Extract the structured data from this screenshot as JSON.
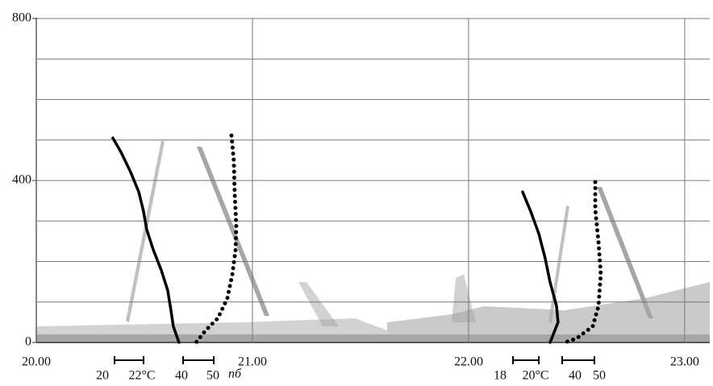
{
  "chart_data": {
    "type": "line",
    "xlim": [
      20,
      23.116
    ],
    "ylim": [
      0,
      800
    ],
    "xticks": [
      {
        "value": 20,
        "label": "20.00"
      },
      {
        "value": 21,
        "label": "21.00"
      },
      {
        "value": 22,
        "label": "22.00"
      },
      {
        "value": 23,
        "label": "23.00"
      }
    ],
    "yticks": [
      0,
      400,
      800
    ],
    "ygrid": [
      100,
      200,
      300,
      400,
      500,
      600,
      700,
      800
    ],
    "grid": true,
    "series": [
      {
        "color": "#000000",
        "style": "solid",
        "x": [
          20.354,
          20.392,
          20.437,
          20.474,
          20.496,
          20.511,
          20.541,
          20.578,
          20.608,
          20.623,
          20.634,
          20.66
        ],
        "values": [
          505,
          470,
          420,
          372,
          324,
          279,
          229,
          179,
          129,
          80,
          40,
          0
        ]
      },
      {
        "color": "#000000",
        "style": "dotted",
        "x": [
          20.903,
          20.914,
          20.918,
          20.925,
          20.922,
          20.907,
          20.884,
          20.84,
          20.784,
          20.739
        ],
        "values": [
          511,
          448,
          368,
          289,
          229,
          169,
          109,
          60,
          30,
          0
        ]
      },
      {
        "color": "#000000",
        "style": "solid",
        "x": [
          22.25,
          22.287,
          22.325,
          22.354,
          22.377,
          22.407,
          22.414,
          22.377
        ],
        "values": [
          372,
          324,
          269,
          209,
          149,
          90,
          50,
          0
        ]
      },
      {
        "color": "#000000",
        "style": "dotted",
        "x": [
          22.586,
          22.586,
          22.601,
          22.612,
          22.601,
          22.575,
          22.5,
          22.444
        ],
        "values": [
          396,
          328,
          249,
          169,
          90,
          40,
          10,
          0
        ]
      }
    ],
    "scale_labels": [
      "20",
      "22°C",
      "40",
      "50",
      "nб",
      "18",
      "20°C",
      "40",
      "50"
    ]
  }
}
